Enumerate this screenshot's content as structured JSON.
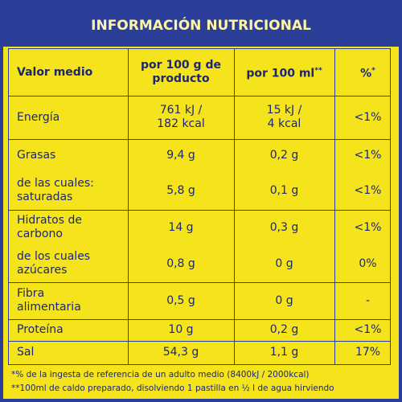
{
  "header": {
    "title": "INFORMACIÓN NUTRICIONAL"
  },
  "table": {
    "columns": [
      {
        "text": "Valor medio"
      },
      {
        "text": "por 100 g de producto"
      },
      {
        "text": "por 100 ml",
        "sup": "**"
      },
      {
        "text": "%",
        "sup": "*"
      }
    ],
    "rows": [
      [
        [
          "Energía"
        ],
        [
          "761 kJ /",
          "182 kcal"
        ],
        [
          "15 kJ /",
          "4 kcal"
        ],
        [
          "<1%"
        ]
      ],
      [
        [
          "Grasas"
        ],
        [
          "9,4 g"
        ],
        [
          "0,2 g"
        ],
        [
          "<1%"
        ]
      ],
      [
        [
          "de las cuales:",
          "saturadas"
        ],
        [
          "5,8 g"
        ],
        [
          "0,1 g"
        ],
        [
          "<1%"
        ]
      ],
      [
        [
          "Hidratos de",
          "carbono"
        ],
        [
          "14 g"
        ],
        [
          "0,3 g"
        ],
        [
          "<1%"
        ]
      ],
      [
        [
          "de los cuales",
          "azúcares"
        ],
        [
          "0,8 g"
        ],
        [
          "0 g"
        ],
        [
          "0%"
        ]
      ],
      [
        [
          "Fibra",
          "alimentaria"
        ],
        [
          "0,5 g"
        ],
        [
          "0 g"
        ],
        [
          "-"
        ]
      ],
      [
        [
          "Proteína"
        ],
        [
          "10 g"
        ],
        [
          "0,2 g"
        ],
        [
          "<1%"
        ]
      ],
      [
        [
          "Sal"
        ],
        [
          "54,3 g"
        ],
        [
          "1,1 g"
        ],
        [
          "17%"
        ]
      ]
    ]
  },
  "footnotes": [
    "*% de la ingesta de referencia de un adulto medio (8400kJ / 2000kcal)",
    "**100ml de caldo preparado, disolviendo 1 pastilla en ½ l de agua hirviendo"
  ]
}
